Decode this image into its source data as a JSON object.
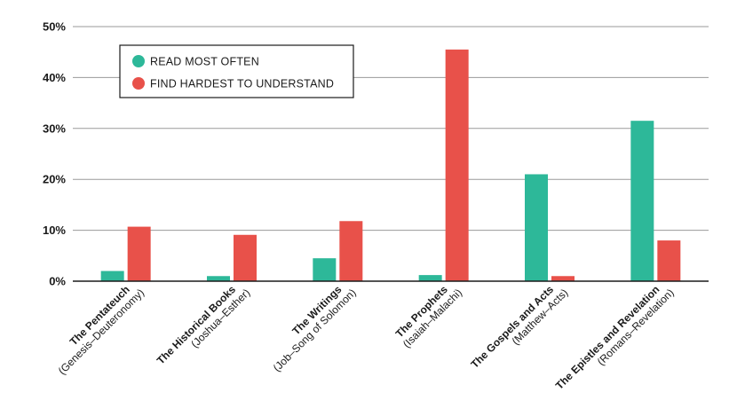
{
  "chart_data": {
    "type": "bar",
    "categories": [
      {
        "name": "The Pentateuch",
        "range": "(Genesis–Deuteronomy)"
      },
      {
        "name": "The Historical Books",
        "range": "(Joshua–Esther)"
      },
      {
        "name": "The Writings",
        "range": "(Job–Song of Solomon)"
      },
      {
        "name": "The Prophets",
        "range": "(Isaiah–Malachi)"
      },
      {
        "name": "The Gospels and Acts",
        "range": "(Matthew–Acts)"
      },
      {
        "name": "The Epistles and Revelation",
        "range": "(Romans–Revelation)"
      }
    ],
    "series": [
      {
        "name": "READ MOST OFTEN",
        "color": "#2db899",
        "values": [
          2,
          1,
          4.5,
          1.2,
          21,
          31.5
        ]
      },
      {
        "name": "FIND HARDEST TO UNDERSTAND",
        "color": "#e8514a",
        "values": [
          10.7,
          9.1,
          11.8,
          45.5,
          1,
          8
        ]
      }
    ],
    "ylim": [
      0,
      50
    ],
    "yticks": [
      "0%",
      "10%",
      "20%",
      "30%",
      "40%",
      "50%"
    ],
    "grid": true,
    "legend_position": "top-left",
    "axis_color": "#1a1a1a",
    "grid_color": "#9a9a9a"
  }
}
